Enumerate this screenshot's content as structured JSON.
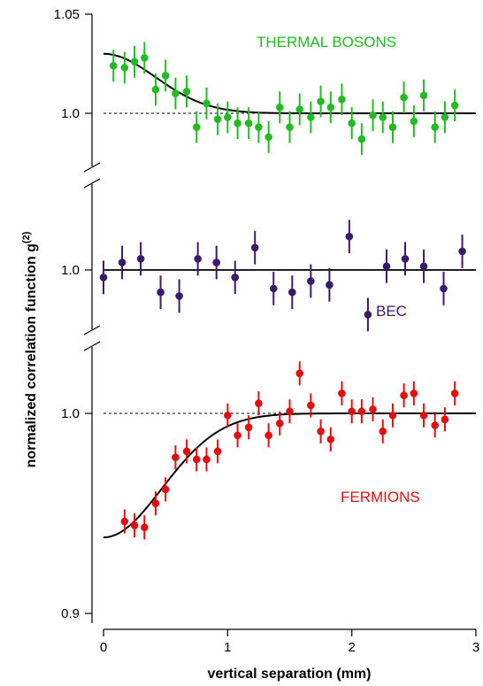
{
  "chart_data": {
    "type": "scatter",
    "ylabel": "normalized correlation function g",
    "ylabel_superscript": "(2)",
    "xlabel": "vertical separation (mm)",
    "xlim": [
      0,
      3
    ],
    "x_ticks": [
      "0",
      "1",
      "2",
      "3"
    ],
    "panels": [
      {
        "name": "THERMAL BOSONS",
        "label": "THERMAL BOSONS",
        "color": "#22bb22",
        "ylim": [
          0.975,
          1.05
        ],
        "y_ticks": [
          "1.0",
          "1.05"
        ],
        "reference_line": {
          "y": 1.0,
          "style": "dashed"
        },
        "fit": {
          "baseline": 1.0,
          "amplitude": 0.03,
          "width": 0.42
        },
        "points": [
          {
            "x": 0.08,
            "y": 1.024,
            "err": 0.008
          },
          {
            "x": 0.17,
            "y": 1.023,
            "err": 0.008
          },
          {
            "x": 0.25,
            "y": 1.026,
            "err": 0.008
          },
          {
            "x": 0.33,
            "y": 1.028,
            "err": 0.008
          },
          {
            "x": 0.42,
            "y": 1.012,
            "err": 0.008
          },
          {
            "x": 0.5,
            "y": 1.019,
            "err": 0.008
          },
          {
            "x": 0.58,
            "y": 1.01,
            "err": 0.008
          },
          {
            "x": 0.67,
            "y": 1.011,
            "err": 0.008
          },
          {
            "x": 0.75,
            "y": 0.993,
            "err": 0.008
          },
          {
            "x": 0.83,
            "y": 1.005,
            "err": 0.008
          },
          {
            "x": 0.92,
            "y": 0.997,
            "err": 0.008
          },
          {
            "x": 1.0,
            "y": 0.998,
            "err": 0.008
          },
          {
            "x": 1.08,
            "y": 0.995,
            "err": 0.008
          },
          {
            "x": 1.17,
            "y": 0.995,
            "err": 0.008
          },
          {
            "x": 1.25,
            "y": 0.993,
            "err": 0.008
          },
          {
            "x": 1.33,
            "y": 0.988,
            "err": 0.008
          },
          {
            "x": 1.42,
            "y": 1.003,
            "err": 0.008
          },
          {
            "x": 1.5,
            "y": 0.993,
            "err": 0.008
          },
          {
            "x": 1.58,
            "y": 1.002,
            "err": 0.008
          },
          {
            "x": 1.67,
            "y": 0.998,
            "err": 0.008
          },
          {
            "x": 1.75,
            "y": 1.006,
            "err": 0.008
          },
          {
            "x": 1.83,
            "y": 1.003,
            "err": 0.008
          },
          {
            "x": 1.92,
            "y": 1.007,
            "err": 0.008
          },
          {
            "x": 2.0,
            "y": 0.995,
            "err": 0.008
          },
          {
            "x": 2.08,
            "y": 0.987,
            "err": 0.008
          },
          {
            "x": 2.17,
            "y": 0.999,
            "err": 0.008
          },
          {
            "x": 2.25,
            "y": 0.998,
            "err": 0.008
          },
          {
            "x": 2.33,
            "y": 0.993,
            "err": 0.008
          },
          {
            "x": 2.42,
            "y": 1.008,
            "err": 0.008
          },
          {
            "x": 2.5,
            "y": 0.996,
            "err": 0.008
          },
          {
            "x": 2.58,
            "y": 1.009,
            "err": 0.008
          },
          {
            "x": 2.67,
            "y": 0.993,
            "err": 0.008
          },
          {
            "x": 2.75,
            "y": 0.998,
            "err": 0.008
          },
          {
            "x": 2.83,
            "y": 1.004,
            "err": 0.008
          }
        ]
      },
      {
        "name": "BEC",
        "label": "BEC",
        "color": "#3a1a6e",
        "ylim": [
          0.981,
          1.02
        ],
        "y_ticks": [
          "1.0"
        ],
        "reference_line": {
          "y": 1.0,
          "style": "solid"
        },
        "points": [
          {
            "x": 0.0,
            "y": 0.998,
            "err": 0.0045
          },
          {
            "x": 0.15,
            "y": 1.002,
            "err": 0.0045
          },
          {
            "x": 0.3,
            "y": 1.003,
            "err": 0.0045
          },
          {
            "x": 0.46,
            "y": 0.994,
            "err": 0.0045
          },
          {
            "x": 0.61,
            "y": 0.993,
            "err": 0.0045
          },
          {
            "x": 0.76,
            "y": 1.003,
            "err": 0.0045
          },
          {
            "x": 0.91,
            "y": 1.002,
            "err": 0.0045
          },
          {
            "x": 1.06,
            "y": 0.998,
            "err": 0.0045
          },
          {
            "x": 1.22,
            "y": 1.006,
            "err": 0.0045
          },
          {
            "x": 1.37,
            "y": 0.995,
            "err": 0.0045
          },
          {
            "x": 1.52,
            "y": 0.994,
            "err": 0.0045
          },
          {
            "x": 1.67,
            "y": 0.997,
            "err": 0.0045
          },
          {
            "x": 1.82,
            "y": 0.996,
            "err": 0.0045
          },
          {
            "x": 1.98,
            "y": 1.009,
            "err": 0.0045
          },
          {
            "x": 2.13,
            "y": 0.988,
            "err": 0.0045
          },
          {
            "x": 2.28,
            "y": 1.001,
            "err": 0.0045
          },
          {
            "x": 2.43,
            "y": 1.003,
            "err": 0.0045
          },
          {
            "x": 2.58,
            "y": 1.001,
            "err": 0.0045
          },
          {
            "x": 2.74,
            "y": 0.995,
            "err": 0.0045
          },
          {
            "x": 2.89,
            "y": 1.005,
            "err": 0.0045
          }
        ]
      },
      {
        "name": "FERMIONS",
        "label": "FERMIONS",
        "color": "#e01010",
        "ylim": [
          0.9,
          1.02
        ],
        "y_ticks": [
          "0.9",
          "1.0"
        ],
        "reference_line": {
          "y": 1.0,
          "style": "dashed"
        },
        "fit": {
          "baseline": 1.0,
          "amplitude": -0.062,
          "width": 0.47
        },
        "points": [
          {
            "x": 0.17,
            "y": 0.946,
            "err": 0.006
          },
          {
            "x": 0.25,
            "y": 0.944,
            "err": 0.006
          },
          {
            "x": 0.33,
            "y": 0.943,
            "err": 0.006
          },
          {
            "x": 0.42,
            "y": 0.955,
            "err": 0.006
          },
          {
            "x": 0.5,
            "y": 0.962,
            "err": 0.006
          },
          {
            "x": 0.58,
            "y": 0.978,
            "err": 0.006
          },
          {
            "x": 0.67,
            "y": 0.981,
            "err": 0.006
          },
          {
            "x": 0.75,
            "y": 0.977,
            "err": 0.006
          },
          {
            "x": 0.83,
            "y": 0.977,
            "err": 0.006
          },
          {
            "x": 0.92,
            "y": 0.981,
            "err": 0.006
          },
          {
            "x": 1.0,
            "y": 0.999,
            "err": 0.006
          },
          {
            "x": 1.08,
            "y": 0.989,
            "err": 0.006
          },
          {
            "x": 1.17,
            "y": 0.993,
            "err": 0.006
          },
          {
            "x": 1.25,
            "y": 1.005,
            "err": 0.006
          },
          {
            "x": 1.33,
            "y": 0.989,
            "err": 0.006
          },
          {
            "x": 1.42,
            "y": 0.995,
            "err": 0.006
          },
          {
            "x": 1.5,
            "y": 1.001,
            "err": 0.006
          },
          {
            "x": 1.58,
            "y": 1.02,
            "err": 0.006
          },
          {
            "x": 1.67,
            "y": 1.004,
            "err": 0.006
          },
          {
            "x": 1.75,
            "y": 0.991,
            "err": 0.006
          },
          {
            "x": 1.83,
            "y": 0.987,
            "err": 0.006
          },
          {
            "x": 1.92,
            "y": 1.01,
            "err": 0.006
          },
          {
            "x": 2.0,
            "y": 1.001,
            "err": 0.006
          },
          {
            "x": 2.08,
            "y": 1.001,
            "err": 0.006
          },
          {
            "x": 2.17,
            "y": 1.002,
            "err": 0.006
          },
          {
            "x": 2.25,
            "y": 0.991,
            "err": 0.006
          },
          {
            "x": 2.33,
            "y": 0.999,
            "err": 0.006
          },
          {
            "x": 2.42,
            "y": 1.009,
            "err": 0.006
          },
          {
            "x": 2.5,
            "y": 1.01,
            "err": 0.006
          },
          {
            "x": 2.58,
            "y": 0.999,
            "err": 0.006
          },
          {
            "x": 2.67,
            "y": 0.994,
            "err": 0.006
          },
          {
            "x": 2.75,
            "y": 0.997,
            "err": 0.006
          },
          {
            "x": 2.83,
            "y": 1.01,
            "err": 0.006
          }
        ]
      }
    ]
  }
}
